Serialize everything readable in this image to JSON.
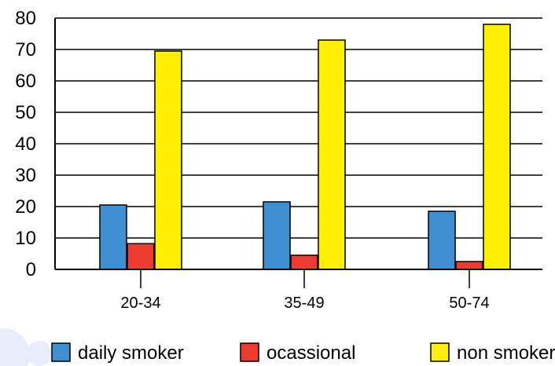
{
  "chart_data": {
    "type": "bar",
    "categories": [
      "20-34",
      "35-49",
      "50-74"
    ],
    "series": [
      {
        "name": "daily smoker",
        "values": [
          20.5,
          21.5,
          18.5
        ],
        "color": "#3f8fd3"
      },
      {
        "name": "ocassional",
        "values": [
          8.2,
          4.5,
          2.5
        ],
        "color": "#ee3b2f"
      },
      {
        "name": "non smoker",
        "values": [
          69.5,
          73,
          78
        ],
        "color": "#ffef00"
      }
    ],
    "ylim": [
      0,
      80
    ],
    "yticks": [
      0,
      10,
      20,
      30,
      40,
      50,
      60,
      70,
      80
    ],
    "grid": true,
    "legend_position": "bottom",
    "title": "",
    "xlabel": "",
    "ylabel": ""
  }
}
